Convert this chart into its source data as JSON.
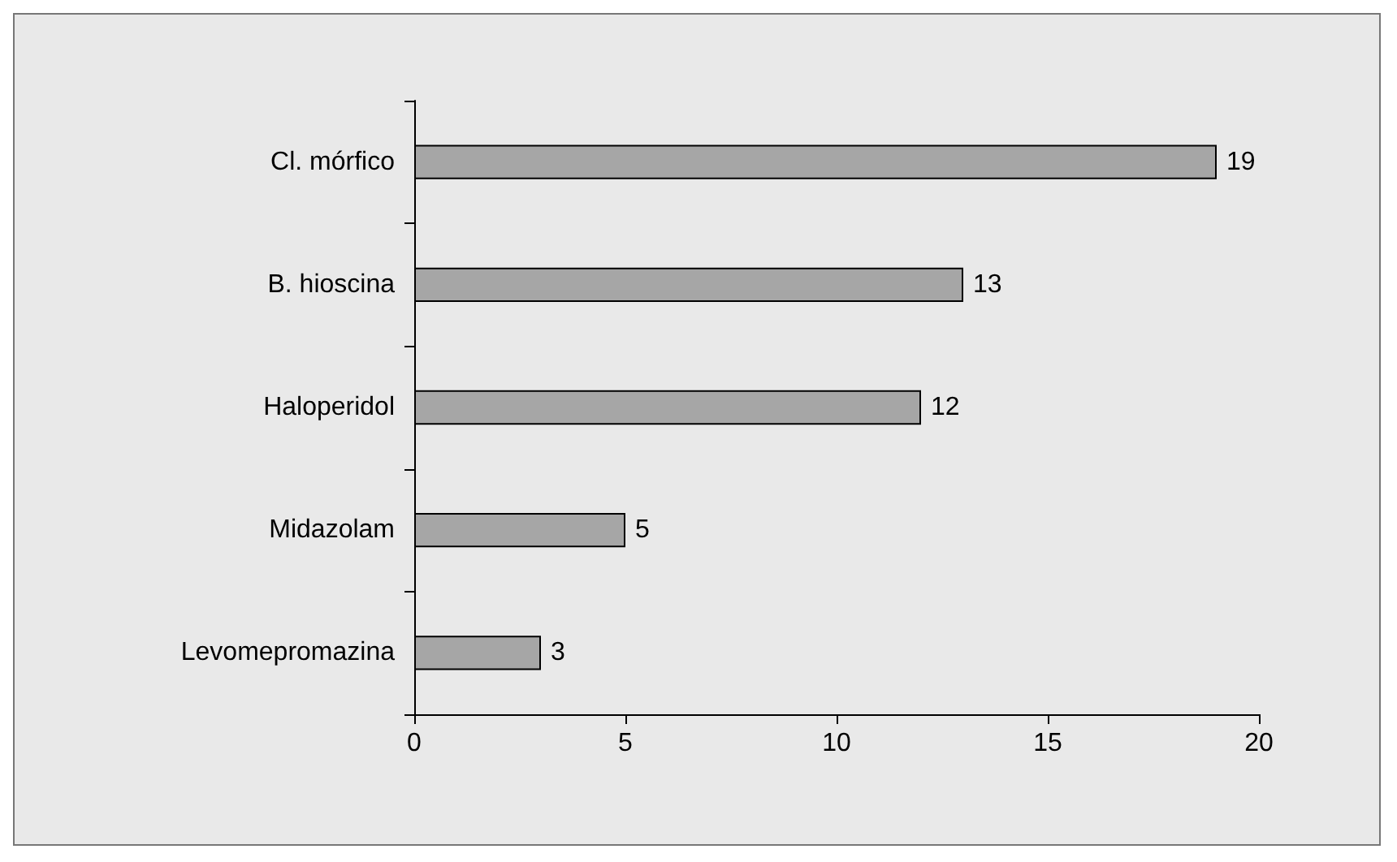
{
  "chart_data": {
    "type": "bar",
    "orientation": "horizontal",
    "categories": [
      "Cl. mórfico",
      "B. hioscina",
      "Haloperidol",
      "Midazolam",
      "Levomepromazina"
    ],
    "values": [
      19,
      13,
      12,
      5,
      3
    ],
    "color": "#a6a6a6",
    "xlim": [
      0,
      20
    ],
    "xticks": [
      0,
      5,
      10,
      15,
      20
    ],
    "grid": false,
    "data_labels": true
  }
}
